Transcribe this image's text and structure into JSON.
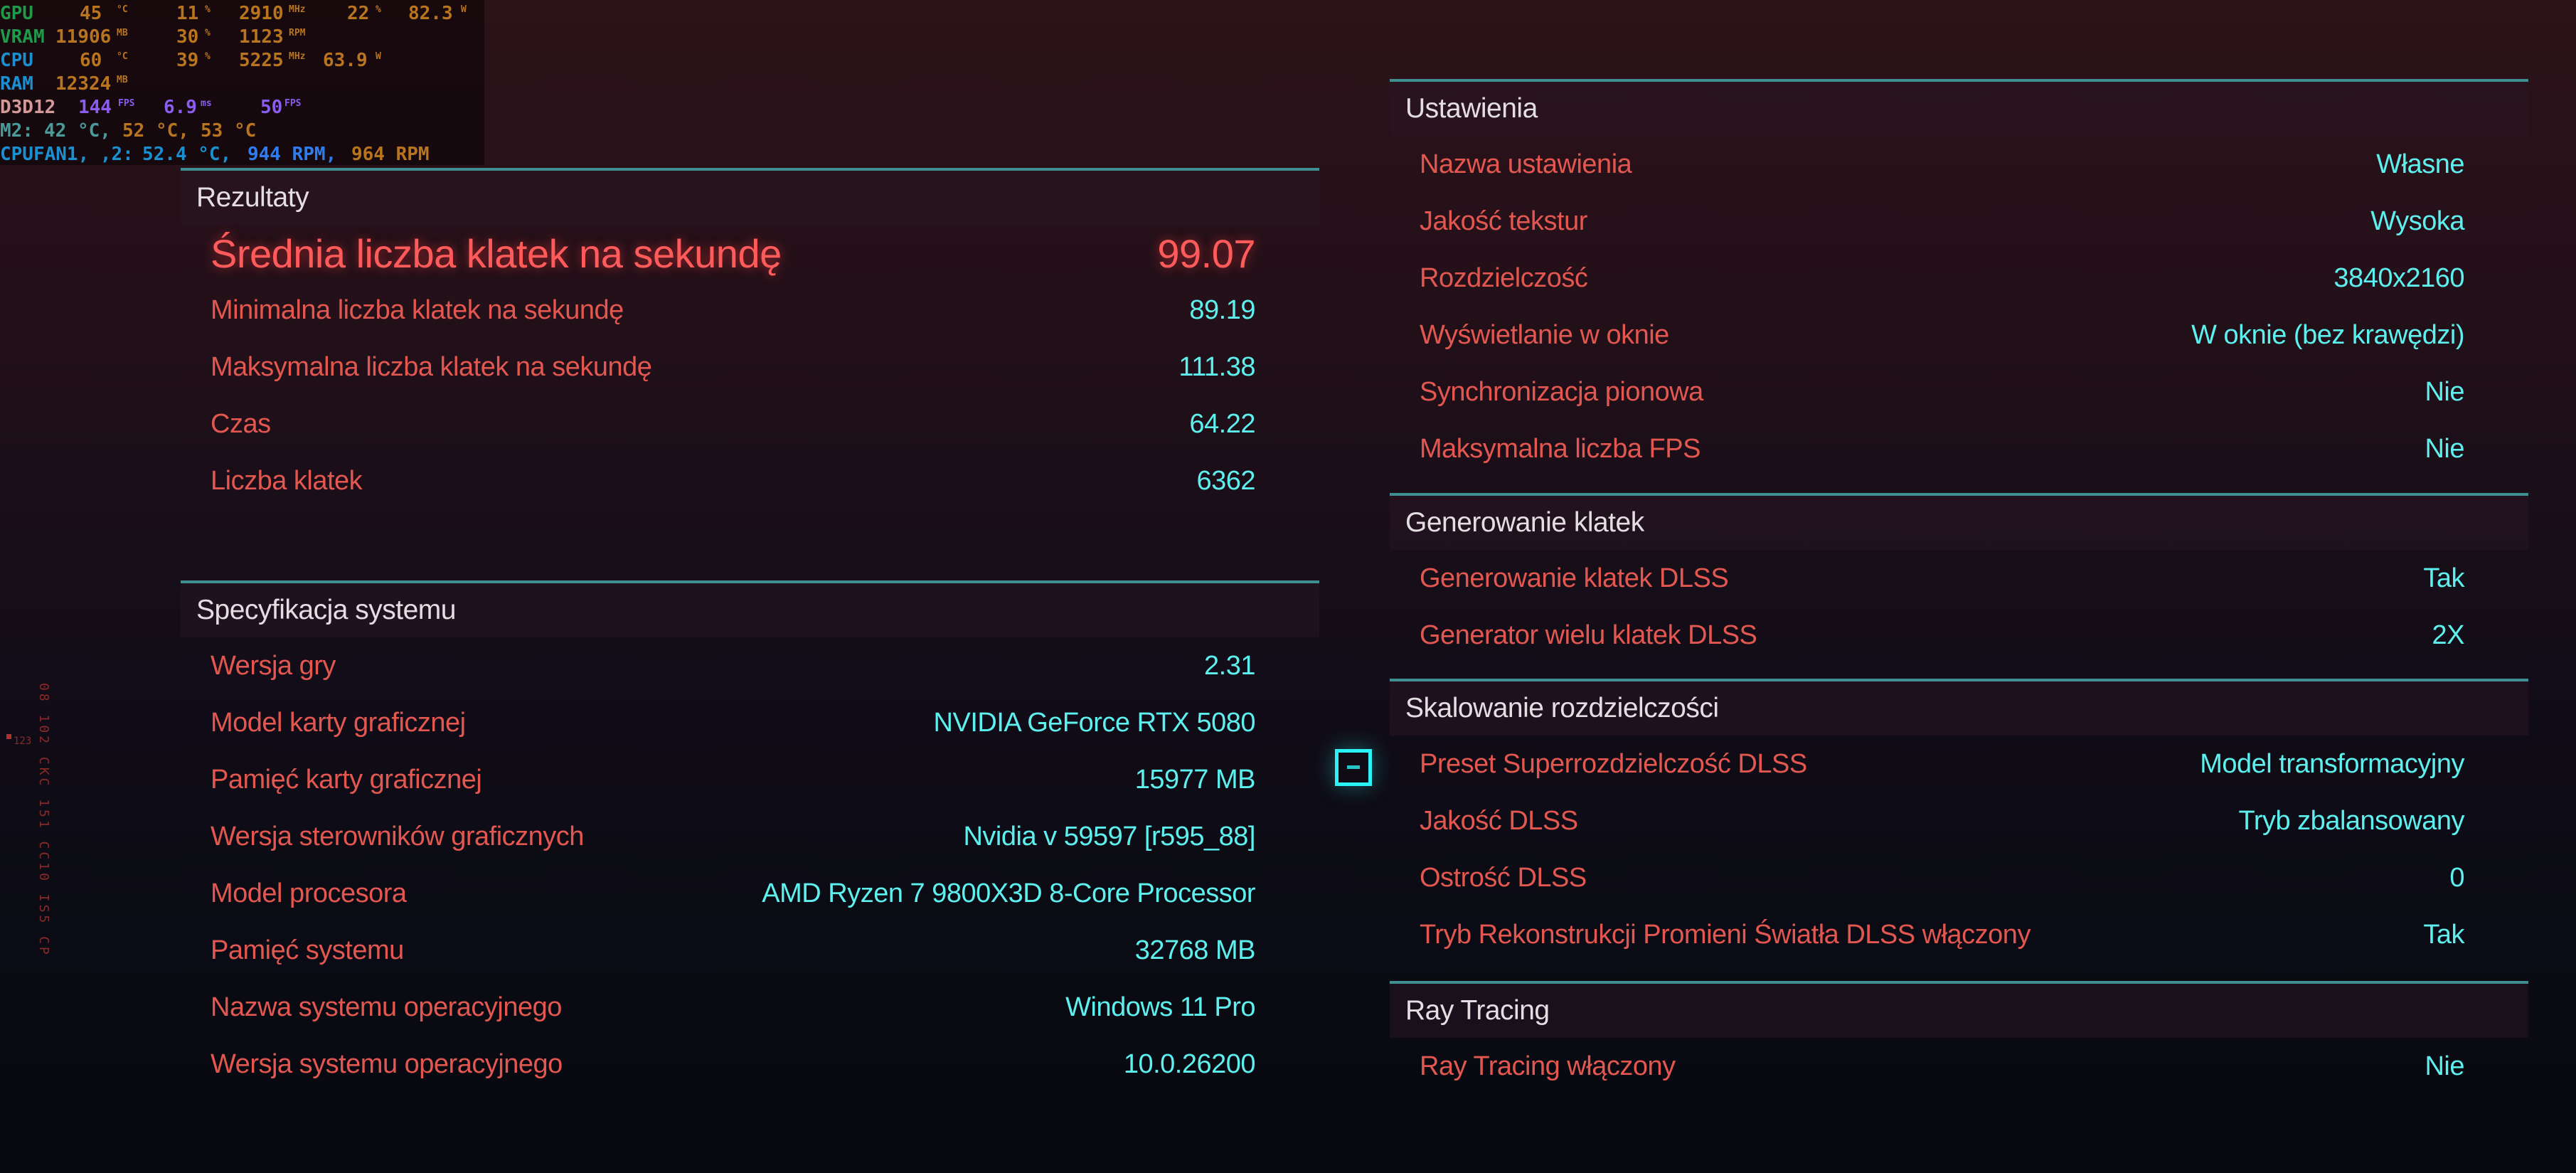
{
  "results": {
    "title": "Rezultaty",
    "avg_fps": {
      "label": "Średnia liczba klatek na sekundę",
      "value": "99.07"
    },
    "rows": [
      {
        "label": "Minimalna liczba klatek na sekundę",
        "value": "89.19"
      },
      {
        "label": "Maksymalna liczba klatek na sekundę",
        "value": "111.38"
      },
      {
        "label": "Czas",
        "value": "64.22"
      },
      {
        "label": "Liczba klatek",
        "value": "6362"
      }
    ]
  },
  "system": {
    "title": "Specyfikacja systemu",
    "rows": [
      {
        "label": "Wersja gry",
        "value": "2.31"
      },
      {
        "label": "Model karty graficznej",
        "value": "NVIDIA GeForce RTX 5080"
      },
      {
        "label": "Pamięć karty graficznej",
        "value": "15977 MB"
      },
      {
        "label": "Wersja sterowników graficznych",
        "value": "Nvidia v 59597 [r595_88]"
      },
      {
        "label": "Model procesora",
        "value": "AMD Ryzen 7 9800X3D 8-Core Processor"
      },
      {
        "label": "Pamięć systemu",
        "value": "32768 MB"
      },
      {
        "label": "Nazwa systemu operacyjnego",
        "value": "Windows 11 Pro"
      },
      {
        "label": "Wersja systemu operacyjnego",
        "value": "10.0.26200"
      }
    ]
  },
  "settings": {
    "title": "Ustawienia",
    "rows": [
      {
        "label": "Nazwa ustawienia",
        "value": "Własne"
      },
      {
        "label": "Jakość tekstur",
        "value": "Wysoka"
      },
      {
        "label": "Rozdzielczość",
        "value": "3840x2160"
      },
      {
        "label": "Wyświetlanie w oknie",
        "value": "W oknie (bez krawędzi)"
      },
      {
        "label": "Synchronizacja pionowa",
        "value": "Nie"
      },
      {
        "label": "Maksymalna liczba FPS",
        "value": "Nie"
      }
    ]
  },
  "frame_gen": {
    "title": "Generowanie klatek",
    "rows": [
      {
        "label": "Generowanie klatek DLSS",
        "value": "Tak"
      },
      {
        "label": "Generator wielu klatek DLSS",
        "value": "2X"
      }
    ]
  },
  "scaling": {
    "title": "Skalowanie rozdzielczości",
    "rows": [
      {
        "label": "Preset Superrozdzielczość DLSS",
        "value": "Model transformacyjny"
      },
      {
        "label": "Jakość DLSS",
        "value": "Tryb zbalansowany"
      },
      {
        "label": "Ostrość DLSS",
        "value": "0"
      },
      {
        "label": "Tryb Rekonstrukcji Promieni Światła DLSS włączony",
        "value": "Tak"
      }
    ]
  },
  "ray_tracing": {
    "title": "Ray Tracing",
    "rows": [
      {
        "label": "Ray Tracing włączony",
        "value": "Nie"
      }
    ]
  },
  "collapse_icon": "minus-square-icon",
  "osd": {
    "gpu": {
      "label": "GPU",
      "temp": "45",
      "temp_unit": "°C",
      "load": "11",
      "load_unit": "%",
      "clock": "2910",
      "clock_unit": "MHz",
      "p4": "22",
      "p4_unit": "%",
      "power": "82.3",
      "power_unit": "W"
    },
    "vram": {
      "label": "VRAM",
      "used": "11906",
      "used_unit": "MB",
      "load": "30",
      "load_unit": "%",
      "fan": "1123",
      "fan_unit": "RPM"
    },
    "cpu": {
      "label": "CPU",
      "temp": "60",
      "temp_unit": "°C",
      "load": "39",
      "load_unit": "%",
      "clock": "5225",
      "clock_unit": "MHz",
      "power": "63.9",
      "power_unit": "W"
    },
    "ram": {
      "label": "RAM",
      "used": "12324",
      "used_unit": "MB"
    },
    "d3d": {
      "label": "D3D12",
      "fps": "144",
      "fps_unit": "FPS",
      "frametime": "6.9",
      "frametime_unit": "ms",
      "low": "50",
      "low_unit": "FPS"
    },
    "m2": {
      "label": "M2:",
      "t1": "42 °C,",
      "t2": "52 °C,",
      "t3": "53 °C"
    },
    "fan": {
      "label": "CPUFAN1, ,2:",
      "temp": "52.4 °C,",
      "rpm1": "944 RPM,",
      "rpm2": "964 RPM"
    },
    "colors": {
      "gpu": "#1f9a4a",
      "cpu": "#1b8fd0",
      "value": "#b8741e",
      "fps": "#8a5cf0",
      "d3d": "#d49a9a",
      "m2": "#4a9a9a"
    }
  },
  "hud_vertical_text": "08 102 CKC 151 CC10 IS5 CP",
  "hud_tag": "123",
  "colors": {
    "label": "#e2574f",
    "value": "#5ef0ee",
    "accent_line": "#3f8e92",
    "highlight": "#ff5b5b"
  }
}
